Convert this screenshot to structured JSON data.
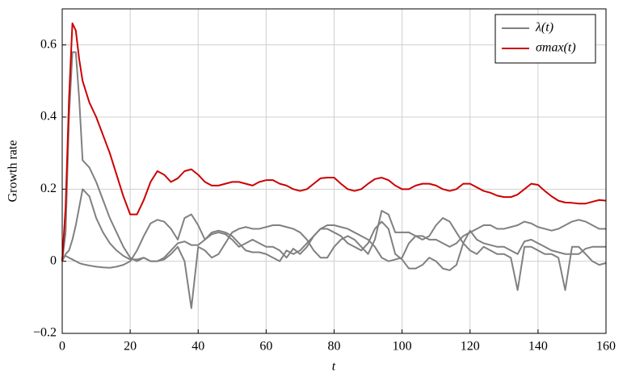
{
  "chart_data": {
    "type": "line",
    "xlabel": "t",
    "ylabel": "Growth rate",
    "xlim": [
      0,
      160
    ],
    "xticks": [
      0,
      20,
      40,
      60,
      80,
      100,
      120,
      140,
      160
    ],
    "ylim": [
      -0.2,
      0.7
    ],
    "yticks": [
      {
        "value": -0.2,
        "label": "−0.2"
      },
      0,
      0.2,
      0.4,
      0.6
    ],
    "grid": true,
    "legend": "upper right",
    "x": [
      0,
      1,
      2,
      3,
      4,
      5,
      6,
      8,
      10,
      12,
      14,
      16,
      18,
      20,
      22,
      24,
      26,
      28,
      30,
      32,
      34,
      36,
      38,
      40,
      42,
      44,
      46,
      48,
      50,
      52,
      54,
      56,
      58,
      60,
      62,
      64,
      66,
      68,
      70,
      72,
      74,
      76,
      78,
      80,
      82,
      84,
      86,
      88,
      90,
      92,
      94,
      96,
      98,
      100,
      102,
      104,
      106,
      108,
      110,
      112,
      114,
      116,
      118,
      120,
      122,
      124,
      126,
      128,
      130,
      132,
      134,
      136,
      138,
      140,
      142,
      144,
      146,
      148,
      150,
      152,
      154,
      156,
      158,
      160
    ],
    "series": [
      {
        "name": "λ(t)",
        "color": "#808080",
        "values": [
          0,
          0.08,
          0.4,
          0.58,
          0.58,
          0.45,
          0.28,
          0.26,
          0.22,
          0.17,
          0.12,
          0.08,
          0.04,
          0.01,
          0,
          0.01,
          0,
          0,
          0.005,
          0.02,
          0.04,
          0,
          -0.13,
          0.04,
          0.03,
          0.01,
          0.02,
          0.05,
          0.08,
          0.09,
          0.095,
          0.09,
          0.09,
          0.095,
          0.1,
          0.1,
          0.095,
          0.09,
          0.08,
          0.06,
          0.03,
          0.01,
          0.01,
          0.04,
          0.06,
          0.07,
          0.06,
          0.04,
          0.02,
          0.06,
          0.14,
          0.13,
          0.08,
          0.08,
          0.08,
          0.07,
          0.06,
          0.07,
          0.1,
          0.12,
          0.11,
          0.08,
          0.05,
          0.03,
          0.02,
          0.04,
          0.03,
          0.02,
          0.02,
          0.01,
          -0.08,
          0.04,
          0.04,
          0.03,
          0.02,
          0.02,
          0.01,
          -0.08,
          0.04,
          0.04,
          0.02,
          0,
          -0.01,
          -0.005
        ]
      },
      {
        "color": "#808080",
        "values": [
          0.01,
          0.015,
          0.01,
          0.005,
          0,
          -0.005,
          -0.008,
          -0.012,
          -0.015,
          -0.017,
          -0.018,
          -0.015,
          -0.01,
          0,
          0.03,
          0.07,
          0.105,
          0.115,
          0.11,
          0.09,
          0.06,
          0.12,
          0.13,
          0.1,
          0.06,
          0.08,
          0.085,
          0.08,
          0.07,
          0.05,
          0.03,
          0.025,
          0.025,
          0.02,
          0.01,
          0,
          0.03,
          0.02,
          0.03,
          0.05,
          0.07,
          0.09,
          0.1,
          0.1,
          0.095,
          0.09,
          0.08,
          0.07,
          0.06,
          0.04,
          0.01,
          0,
          0.005,
          0.01,
          0.05,
          0.07,
          0.07,
          0.06,
          0.06,
          0.05,
          0.04,
          0.05,
          0.07,
          0.08,
          0.09,
          0.1,
          0.1,
          0.09,
          0.09,
          0.095,
          0.1,
          0.11,
          0.105,
          0.095,
          0.09,
          0.085,
          0.09,
          0.1,
          0.11,
          0.115,
          0.11,
          0.1,
          0.09,
          0.09
        ]
      },
      {
        "color": "#808080",
        "values": [
          0,
          0.02,
          0.03,
          0.06,
          0.1,
          0.15,
          0.2,
          0.18,
          0.12,
          0.08,
          0.05,
          0.03,
          0.015,
          0.005,
          0.005,
          0.01,
          0,
          0,
          0.01,
          0.03,
          0.05,
          0.055,
          0.045,
          0.045,
          0.06,
          0.075,
          0.08,
          0.075,
          0.06,
          0.04,
          0.05,
          0.06,
          0.05,
          0.04,
          0.04,
          0.03,
          0.01,
          0.035,
          0.02,
          0.04,
          0.07,
          0.09,
          0.09,
          0.08,
          0.07,
          0.05,
          0.04,
          0.03,
          0.05,
          0.09,
          0.11,
          0.09,
          0.02,
          0.005,
          -0.02,
          -0.02,
          -0.01,
          0.01,
          0,
          -0.02,
          -0.025,
          -0.01,
          0.05,
          0.085,
          0.06,
          0.05,
          0.045,
          0.04,
          0.04,
          0.03,
          0.02,
          0.055,
          0.06,
          0.05,
          0.04,
          0.03,
          0.025,
          0.02,
          0.02,
          0.02,
          0.035,
          0.04,
          0.04,
          0.04
        ]
      },
      {
        "name": "σmax(t)",
        "color": "#cc0000",
        "values": [
          0,
          0.15,
          0.45,
          0.66,
          0.64,
          0.56,
          0.5,
          0.44,
          0.4,
          0.35,
          0.3,
          0.24,
          0.18,
          0.13,
          0.13,
          0.17,
          0.22,
          0.25,
          0.24,
          0.22,
          0.23,
          0.25,
          0.255,
          0.24,
          0.22,
          0.21,
          0.21,
          0.215,
          0.22,
          0.22,
          0.215,
          0.21,
          0.22,
          0.225,
          0.225,
          0.215,
          0.21,
          0.2,
          0.195,
          0.2,
          0.215,
          0.23,
          0.232,
          0.232,
          0.215,
          0.2,
          0.195,
          0.2,
          0.215,
          0.228,
          0.232,
          0.225,
          0.21,
          0.2,
          0.2,
          0.21,
          0.215,
          0.215,
          0.21,
          0.2,
          0.195,
          0.2,
          0.215,
          0.215,
          0.205,
          0.195,
          0.19,
          0.182,
          0.178,
          0.178,
          0.185,
          0.2,
          0.215,
          0.212,
          0.195,
          0.18,
          0.168,
          0.163,
          0.162,
          0.16,
          0.16,
          0.165,
          0.17,
          0.168
        ]
      }
    ]
  }
}
